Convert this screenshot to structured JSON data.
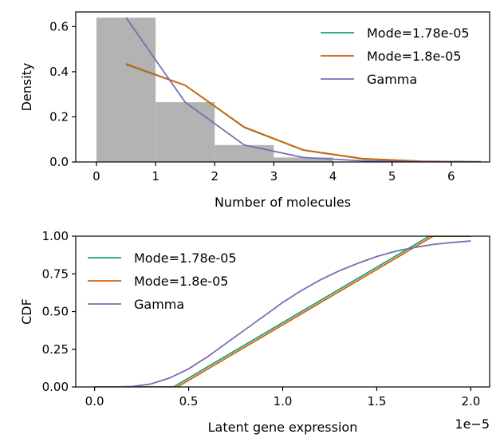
{
  "chart_data": [
    {
      "type": "line",
      "panel": "top",
      "xlabel": "Number of molecules",
      "ylabel": "Density",
      "xlim": [
        -0.35,
        6.65
      ],
      "ylim": [
        0,
        0.665
      ],
      "xticks": [
        0,
        1,
        2,
        3,
        4,
        5,
        6
      ],
      "yticks": [
        0.0,
        0.2,
        0.4,
        0.6
      ],
      "ytick_labels": [
        "0.0",
        "0.2",
        "0.4",
        "0.6"
      ],
      "grid": false,
      "legend_position": "top-right",
      "histogram": {
        "color": "#b3b3b3",
        "bins": [
          {
            "x0": 0,
            "x1": 1,
            "value": 0.64
          },
          {
            "x0": 1,
            "x1": 2,
            "value": 0.265
          },
          {
            "x0": 2,
            "x1": 3,
            "value": 0.075
          },
          {
            "x0": 3,
            "x1": 4,
            "value": 0.02
          }
        ]
      },
      "series": [
        {
          "name": "Mode=1.78e-05",
          "color": "#1b9e77",
          "x": [
            0.5,
            1.5,
            2.5,
            3.5,
            4.5,
            5.5,
            6.5
          ],
          "y": [
            0.432,
            0.34,
            0.153,
            0.052,
            0.014,
            0.003,
            0.0006
          ]
        },
        {
          "name": "Mode=1.8e-05",
          "color": "#d95f02",
          "x": [
            0.5,
            1.5,
            2.5,
            3.5,
            4.5,
            5.5,
            6.5
          ],
          "y": [
            0.435,
            0.34,
            0.155,
            0.053,
            0.015,
            0.003,
            0.0006
          ]
        },
        {
          "name": "Gamma",
          "color": "#7570b3",
          "x": [
            0.5,
            1.5,
            2.5,
            3.5,
            4.5,
            5.5,
            6.5
          ],
          "y": [
            0.64,
            0.265,
            0.075,
            0.02,
            0.005,
            0.001,
            0.0002
          ]
        }
      ]
    },
    {
      "type": "line",
      "panel": "bottom",
      "xlabel": "Latent gene expression",
      "ylabel": "CDF",
      "x_offset_label": "1e−5",
      "xlim": [
        -1e-06,
        2.1e-05
      ],
      "ylim": [
        0,
        1
      ],
      "xticks": [
        0.0,
        0.5,
        1.0,
        1.5,
        2.0
      ],
      "xtick_labels": [
        "0.0",
        "0.5",
        "1.0",
        "1.5",
        "2.0"
      ],
      "yticks": [
        0.0,
        0.25,
        0.5,
        0.75,
        1.0
      ],
      "ytick_labels": [
        "0.00",
        "0.25",
        "0.50",
        "0.75",
        "1.00"
      ],
      "grid": false,
      "legend_position": "top-left",
      "series": [
        {
          "name": "Mode=1.78e-05",
          "color": "#1b9e77",
          "x": [
            0.0,
            4.2e-06,
            1.78e-05,
            2e-05
          ],
          "y": [
            0.0,
            0.0,
            1.0,
            1.0
          ]
        },
        {
          "name": "Mode=1.8e-05",
          "color": "#d95f02",
          "x": [
            0.0,
            4.4e-06,
            1.8e-05,
            2e-05
          ],
          "y": [
            0.0,
            0.0,
            1.0,
            1.0
          ]
        },
        {
          "name": "Gamma",
          "color": "#7570b3",
          "x": [
            0.0,
            1e-06,
            2e-06,
            3e-06,
            4e-06,
            5e-06,
            6e-06,
            7e-06,
            8e-06,
            9e-06,
            1e-05,
            1.1e-05,
            1.2e-05,
            1.3e-05,
            1.4e-05,
            1.5e-05,
            1.6e-05,
            1.7e-05,
            1.8e-05,
            1.9e-05,
            2e-05
          ],
          "y": [
            0.0,
            0.0,
            0.003,
            0.02,
            0.06,
            0.12,
            0.2,
            0.29,
            0.38,
            0.47,
            0.56,
            0.64,
            0.71,
            0.77,
            0.82,
            0.865,
            0.9,
            0.925,
            0.945,
            0.958,
            0.968
          ]
        }
      ]
    }
  ]
}
